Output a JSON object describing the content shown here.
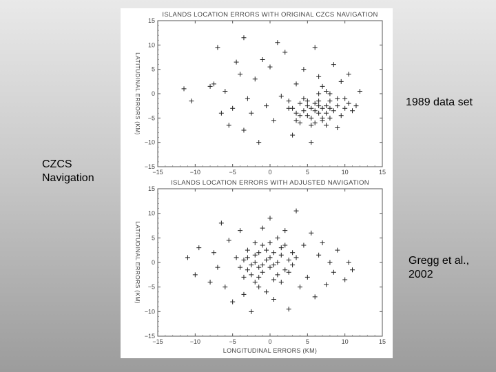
{
  "slide": {
    "left_label": "CZCS\nNavigation",
    "right_top_label": "1989 data set",
    "right_bottom_label": "Gregg et al.,\n2002"
  },
  "chart_data": [
    {
      "type": "scatter",
      "title": "ISLANDS LOCATION ERRORS WITH ORIGINAL CZCS NAVIGATION",
      "xlabel": "",
      "ylabel": "LATITUDINAL ERRORS (KM)",
      "xlim": [
        -15,
        15
      ],
      "ylim": [
        -15,
        15
      ],
      "xticks": [
        -15,
        -10,
        -5,
        0,
        5,
        10,
        15
      ],
      "yticks": [
        -15,
        -10,
        -5,
        0,
        5,
        10,
        15
      ],
      "marker": "+",
      "series": [
        {
          "points": [
            [
              -11.5,
              1.0
            ],
            [
              -10.5,
              -1.5
            ],
            [
              -8.0,
              1.5
            ],
            [
              -7.5,
              2.0
            ],
            [
              -7.0,
              9.5
            ],
            [
              -6.5,
              -4.0
            ],
            [
              -6.0,
              0.5
            ],
            [
              -5.5,
              -6.5
            ],
            [
              -5.0,
              -3.0
            ],
            [
              -4.5,
              6.5
            ],
            [
              -4.0,
              4.0
            ],
            [
              -3.5,
              11.5
            ],
            [
              -3.5,
              -7.5
            ],
            [
              -3.0,
              -1.0
            ],
            [
              -2.5,
              -4.0
            ],
            [
              -2.0,
              3.0
            ],
            [
              -1.5,
              -10.0
            ],
            [
              -1.0,
              7.0
            ],
            [
              -0.5,
              -2.5
            ],
            [
              0.0,
              5.5
            ],
            [
              0.5,
              -5.5
            ],
            [
              1.0,
              10.5
            ],
            [
              1.5,
              -0.5
            ],
            [
              2.0,
              8.5
            ],
            [
              2.5,
              -3.0
            ],
            [
              3.0,
              -8.5
            ],
            [
              3.5,
              2.0
            ],
            [
              4.0,
              -6.0
            ],
            [
              4.5,
              5.0
            ],
            [
              5.0,
              -1.5
            ],
            [
              5.5,
              -10.0
            ],
            [
              6.0,
              9.5
            ],
            [
              6.5,
              3.5
            ],
            [
              7.0,
              -5.5
            ],
            [
              7.5,
              0.5
            ],
            [
              8.0,
              -3.0
            ],
            [
              8.5,
              6.0
            ],
            [
              9.0,
              -7.0
            ],
            [
              9.5,
              2.5
            ],
            [
              10.0,
              -1.0
            ],
            [
              10.5,
              4.0
            ],
            [
              11.0,
              -3.5
            ],
            [
              12.0,
              0.5
            ],
            [
              3.0,
              -3.0
            ],
            [
              3.5,
              -4.0
            ],
            [
              4.0,
              -2.0
            ],
            [
              4.5,
              -3.5
            ],
            [
              5.0,
              -4.5
            ],
            [
              5.0,
              -2.5
            ],
            [
              5.5,
              -3.0
            ],
            [
              5.5,
              -5.0
            ],
            [
              6.0,
              -3.5
            ],
            [
              6.0,
              -2.0
            ],
            [
              6.5,
              -4.0
            ],
            [
              6.5,
              -1.5
            ],
            [
              7.0,
              -3.0
            ],
            [
              7.0,
              -5.0
            ],
            [
              7.5,
              -2.5
            ],
            [
              7.5,
              -4.0
            ],
            [
              8.0,
              -1.5
            ],
            [
              8.0,
              -5.0
            ],
            [
              8.5,
              -3.5
            ],
            [
              9.0,
              -2.5
            ],
            [
              9.5,
              -4.5
            ],
            [
              10.0,
              -3.0
            ],
            [
              4.5,
              -1.0
            ],
            [
              6.5,
              0.0
            ],
            [
              5.5,
              -6.5
            ],
            [
              7.0,
              1.5
            ],
            [
              3.5,
              -5.5
            ],
            [
              9.0,
              -1.0
            ],
            [
              6.0,
              -6.0
            ],
            [
              8.0,
              0.0
            ],
            [
              4.0,
              -4.5
            ],
            [
              7.5,
              -6.5
            ],
            [
              10.5,
              -2.0
            ],
            [
              2.5,
              -1.5
            ],
            [
              11.5,
              -2.5
            ],
            [
              6.5,
              -2.5
            ]
          ]
        }
      ]
    },
    {
      "type": "scatter",
      "title": "ISLANDS LOCATION ERRORS WITH ADJUSTED NAVIGATION",
      "xlabel": "LONGITUDINAL ERRORS (KM)",
      "ylabel": "LATITUDINAL ERRORS (KM)",
      "xlim": [
        -15,
        15
      ],
      "ylim": [
        -15,
        15
      ],
      "xticks": [
        -15,
        -10,
        -5,
        0,
        5,
        10,
        15
      ],
      "yticks": [
        -15,
        -10,
        -5,
        0,
        5,
        10,
        15
      ],
      "marker": "+",
      "series": [
        {
          "points": [
            [
              -11.0,
              1.0
            ],
            [
              -10.0,
              -2.5
            ],
            [
              -9.5,
              3.0
            ],
            [
              -8.0,
              -4.0
            ],
            [
              -7.5,
              2.0
            ],
            [
              -7.0,
              -1.0
            ],
            [
              -6.5,
              8.0
            ],
            [
              -6.0,
              -5.0
            ],
            [
              -5.5,
              4.5
            ],
            [
              -5.0,
              -8.0
            ],
            [
              -4.5,
              1.0
            ],
            [
              -4.0,
              6.5
            ],
            [
              -3.5,
              -6.5
            ],
            [
              -3.0,
              2.5
            ],
            [
              -2.5,
              -10.0
            ],
            [
              -2.0,
              4.0
            ],
            [
              -1.5,
              -3.0
            ],
            [
              -1.0,
              7.0
            ],
            [
              -0.5,
              -6.0
            ],
            [
              0.0,
              9.0
            ],
            [
              0.5,
              -7.5
            ],
            [
              1.0,
              5.0
            ],
            [
              1.5,
              -4.0
            ],
            [
              2.0,
              6.5
            ],
            [
              2.5,
              -9.5
            ],
            [
              3.0,
              2.0
            ],
            [
              3.5,
              10.5
            ],
            [
              4.0,
              -5.0
            ],
            [
              4.5,
              3.5
            ],
            [
              5.0,
              -3.0
            ],
            [
              5.5,
              6.0
            ],
            [
              6.0,
              -7.0
            ],
            [
              6.5,
              1.5
            ],
            [
              7.0,
              4.0
            ],
            [
              7.5,
              -4.5
            ],
            [
              8.0,
              0.0
            ],
            [
              8.5,
              -2.0
            ],
            [
              9.0,
              2.5
            ],
            [
              10.0,
              -3.5
            ],
            [
              10.5,
              0.0
            ],
            [
              11.0,
              -1.5
            ],
            [
              -4.0,
              -1.0
            ],
            [
              -3.5,
              0.5
            ],
            [
              -3.0,
              -1.5
            ],
            [
              -3.0,
              1.0
            ],
            [
              -2.5,
              -0.5
            ],
            [
              -2.5,
              -2.5
            ],
            [
              -2.0,
              0.0
            ],
            [
              -2.0,
              1.5
            ],
            [
              -1.5,
              -1.0
            ],
            [
              -1.5,
              2.0
            ],
            [
              -1.0,
              -0.5
            ],
            [
              -1.0,
              -2.0
            ],
            [
              -0.5,
              0.5
            ],
            [
              -0.5,
              2.5
            ],
            [
              0.0,
              -1.0
            ],
            [
              0.0,
              1.0
            ],
            [
              0.5,
              -0.5
            ],
            [
              0.5,
              2.0
            ],
            [
              1.0,
              0.0
            ],
            [
              1.0,
              -2.5
            ],
            [
              1.5,
              1.5
            ],
            [
              2.0,
              -1.5
            ],
            [
              2.5,
              0.5
            ],
            [
              3.0,
              -0.5
            ],
            [
              -2.0,
              -4.0
            ],
            [
              -1.0,
              3.5
            ],
            [
              0.5,
              -3.5
            ],
            [
              1.5,
              3.0
            ],
            [
              -3.5,
              -3.0
            ],
            [
              2.5,
              -2.0
            ],
            [
              3.5,
              1.0
            ],
            [
              -1.5,
              -5.0
            ],
            [
              0.0,
              4.0
            ],
            [
              2.0,
              3.5
            ]
          ]
        }
      ]
    }
  ]
}
